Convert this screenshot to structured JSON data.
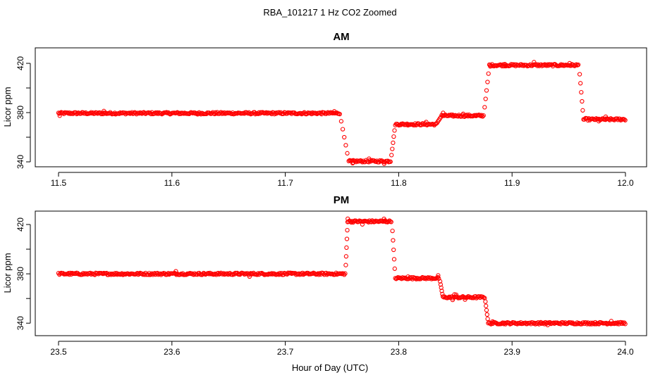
{
  "figure": {
    "title": "RBA_101217  1 Hz CO2 Zoomed",
    "xlabel": "Hour of Day (UTC)"
  },
  "chart_data": [
    {
      "type": "scatter",
      "title": "AM",
      "ylabel": "Licor ppm",
      "xlim": [
        11.5,
        12.0
      ],
      "ylim": [
        340,
        424
      ],
      "x_ticks": [
        "11.5",
        "11.6",
        "11.7",
        "11.8",
        "11.9",
        "12.0"
      ],
      "y_ticks": [
        "340",
        "380",
        "420"
      ],
      "marker": "open-circle",
      "color": "#ff0000",
      "segments": [
        {
          "x_start": 11.5,
          "x_end": 11.748,
          "value": 379.5
        },
        {
          "x_start": 11.756,
          "x_end": 11.793,
          "value": 340.5
        },
        {
          "x_start": 11.797,
          "x_end": 11.833,
          "value": 370.5
        },
        {
          "x_start": 11.838,
          "x_end": 11.875,
          "value": 377.5
        },
        {
          "x_start": 11.88,
          "x_end": 11.959,
          "value": 418.5
        },
        {
          "x_start": 11.963,
          "x_end": 12.0,
          "value": 374.5
        }
      ]
    },
    {
      "type": "scatter",
      "title": "PM",
      "ylabel": "Licor ppm",
      "xlim": [
        23.5,
        24.0
      ],
      "ylim": [
        335,
        428
      ],
      "x_ticks": [
        "23.5",
        "23.6",
        "23.7",
        "23.8",
        "23.9",
        "24.0"
      ],
      "y_ticks": [
        "340",
        "380",
        "420"
      ],
      "marker": "open-circle",
      "color": "#ff0000",
      "segments": [
        {
          "x_start": 23.5,
          "x_end": 23.753,
          "value": 380.0
        },
        {
          "x_start": 23.755,
          "x_end": 23.794,
          "value": 422.5
        },
        {
          "x_start": 23.797,
          "x_end": 23.836,
          "value": 376.5
        },
        {
          "x_start": 23.839,
          "x_end": 23.876,
          "value": 361.0
        },
        {
          "x_start": 23.879,
          "x_end": 24.0,
          "value": 340.0
        }
      ]
    }
  ]
}
